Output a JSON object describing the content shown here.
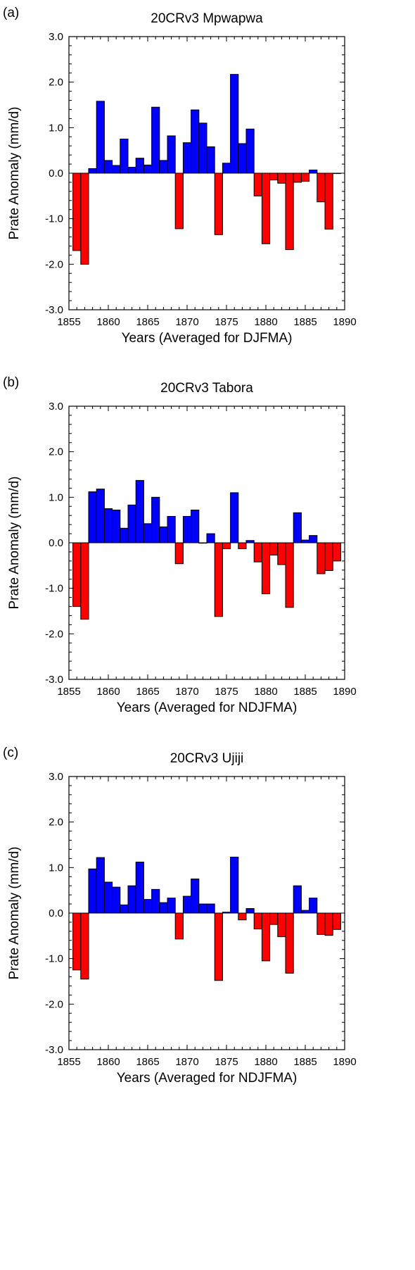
{
  "colors": {
    "positive": "#0000ff",
    "negative": "#ff0000",
    "axis": "#000000"
  },
  "chart_data": [
    {
      "type": "bar",
      "panel_label": "(a)",
      "title": "20CRv3 Mpwapwa",
      "xlabel": "Years (Averaged for DJFMA)",
      "ylabel": "Prate Anomaly (mm/d)",
      "xlim": [
        1855,
        1890
      ],
      "ylim": [
        -3,
        3
      ],
      "xticks": [
        "1855",
        "1860",
        "1865",
        "1870",
        "1875",
        "1880",
        "1885",
        "1890"
      ],
      "yticks": [
        "-3.0",
        "-2.0",
        "-1.0",
        "0.0",
        "1.0",
        "2.0",
        "3.0"
      ],
      "x": [
        1856,
        1857,
        1858,
        1859,
        1860,
        1861,
        1862,
        1863,
        1864,
        1865,
        1866,
        1867,
        1868,
        1869,
        1870,
        1871,
        1872,
        1873,
        1874,
        1875,
        1876,
        1877,
        1878,
        1879,
        1880,
        1881,
        1882,
        1883,
        1884,
        1885,
        1886,
        1887,
        1888,
        1889
      ],
      "values": [
        -1.7,
        -2.0,
        0.1,
        1.58,
        0.28,
        0.17,
        0.75,
        0.13,
        0.33,
        0.18,
        1.45,
        0.28,
        0.82,
        -1.22,
        0.67,
        1.39,
        1.1,
        0.58,
        -1.35,
        0.22,
        2.17,
        0.65,
        0.97,
        -0.5,
        -1.55,
        -0.15,
        -0.22,
        -1.68,
        -0.2,
        -0.18,
        0.07,
        -0.63,
        -1.23,
        0.0
      ]
    },
    {
      "type": "bar",
      "panel_label": "(b)",
      "title": "20CRv3 Tabora",
      "xlabel": "Years (Averaged for NDJFMA)",
      "ylabel": "Prate Anomaly (mm/d)",
      "xlim": [
        1855,
        1890
      ],
      "ylim": [
        -3,
        3
      ],
      "xticks": [
        "1855",
        "1860",
        "1865",
        "1870",
        "1875",
        "1880",
        "1885",
        "1890"
      ],
      "yticks": [
        "-3.0",
        "-2.0",
        "-1.0",
        "0.0",
        "1.0",
        "2.0",
        "3.0"
      ],
      "x": [
        1856,
        1857,
        1858,
        1859,
        1860,
        1861,
        1862,
        1863,
        1864,
        1865,
        1866,
        1867,
        1868,
        1869,
        1870,
        1871,
        1872,
        1873,
        1874,
        1875,
        1876,
        1877,
        1878,
        1879,
        1880,
        1881,
        1882,
        1883,
        1884,
        1885,
        1886,
        1887,
        1888,
        1889
      ],
      "values": [
        -1.4,
        -1.68,
        1.12,
        1.18,
        0.75,
        0.72,
        0.32,
        0.83,
        1.37,
        0.42,
        1.0,
        0.35,
        0.58,
        -0.46,
        0.58,
        0.72,
        0.0,
        0.2,
        -1.62,
        -0.13,
        1.1,
        -0.13,
        0.05,
        -0.42,
        -1.12,
        -0.27,
        -0.48,
        -1.42,
        0.66,
        0.06,
        0.16,
        -0.68,
        -0.61,
        -0.4
      ]
    },
    {
      "type": "bar",
      "panel_label": "(c)",
      "title": "20CRv3 Ujiji",
      "xlabel": "Years (Averaged for NDJFMA)",
      "ylabel": "Prate Anomaly (mm/d)",
      "xlim": [
        1855,
        1890
      ],
      "ylim": [
        -3,
        3
      ],
      "xticks": [
        "1855",
        "1860",
        "1865",
        "1870",
        "1875",
        "1880",
        "1885",
        "1890"
      ],
      "yticks": [
        "-3.0",
        "-2.0",
        "-1.0",
        "0.0",
        "1.0",
        "2.0",
        "3.0"
      ],
      "x": [
        1856,
        1857,
        1858,
        1859,
        1860,
        1861,
        1862,
        1863,
        1864,
        1865,
        1866,
        1867,
        1868,
        1869,
        1870,
        1871,
        1872,
        1873,
        1874,
        1875,
        1876,
        1877,
        1878,
        1879,
        1880,
        1881,
        1882,
        1883,
        1884,
        1885,
        1886,
        1887,
        1888,
        1889
      ],
      "values": [
        -1.25,
        -1.45,
        0.97,
        1.22,
        0.68,
        0.57,
        0.18,
        0.6,
        1.12,
        0.3,
        0.52,
        0.23,
        0.33,
        -0.57,
        0.37,
        0.75,
        0.2,
        0.2,
        -1.48,
        0.02,
        1.23,
        -0.15,
        0.1,
        -0.35,
        -1.05,
        -0.25,
        -0.52,
        -1.32,
        0.6,
        0.06,
        0.33,
        -0.47,
        -0.49,
        -0.36
      ]
    }
  ]
}
